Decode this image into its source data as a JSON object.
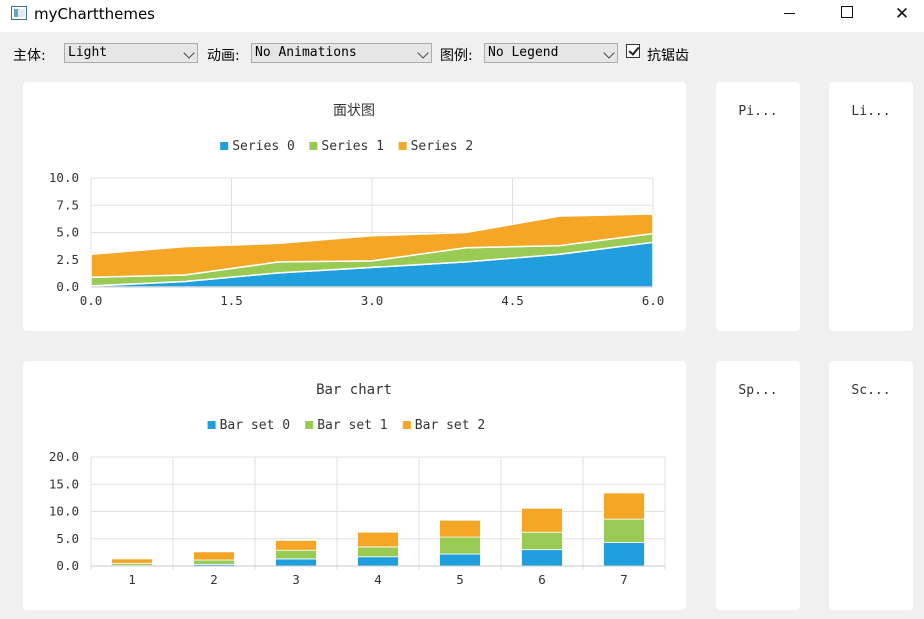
{
  "window": {
    "title": "myChartthemes",
    "minimize": "—",
    "maximize": "☐",
    "close": "✕"
  },
  "toolbar": {
    "theme_label": "主体:",
    "theme_value": "Light",
    "animation_label": "动画:",
    "animation_value": "No Animations",
    "legend_label": "图例:",
    "legend_value": "No Legend",
    "antialias_label": "抗锯齿",
    "antialias_checked": true
  },
  "colors": {
    "series0": "#209fdf",
    "series1": "#99ca53",
    "series2": "#f6a625",
    "grid": "#e0e0e0"
  },
  "chart_data": [
    {
      "type": "area",
      "title": "面状图",
      "legend": [
        "Series 0",
        "Series 1",
        "Series 2"
      ],
      "x": [
        0,
        1,
        2,
        3,
        4,
        5,
        6
      ],
      "stacked": true,
      "series": [
        {
          "name": "Series 0",
          "values": [
            0.1,
            0.5,
            1.3,
            1.8,
            2.3,
            3.0,
            4.1
          ]
        },
        {
          "name": "Series 1",
          "values": [
            0.8,
            0.6,
            1.0,
            0.6,
            1.3,
            0.8,
            0.8
          ]
        },
        {
          "name": "Series 2",
          "values": [
            2.1,
            2.6,
            1.7,
            2.3,
            1.4,
            2.7,
            1.8
          ]
        }
      ],
      "xlim": [
        0,
        6
      ],
      "ylim": [
        0,
        10
      ],
      "xticks": [
        "0.0",
        "1.5",
        "3.0",
        "4.5",
        "6.0"
      ],
      "yticks": [
        "0.0",
        "2.5",
        "5.0",
        "7.5",
        "10.0"
      ],
      "grid": true,
      "legend_position": "top"
    },
    {
      "type": "bar",
      "stacked": true,
      "title": "Bar chart",
      "legend": [
        "Bar set 0",
        "Bar set 1",
        "Bar set 2"
      ],
      "categories": [
        "1",
        "2",
        "3",
        "4",
        "5",
        "6",
        "7"
      ],
      "series": [
        {
          "name": "Bar set 0",
          "values": [
            0.1,
            0.3,
            1.3,
            1.7,
            2.2,
            3.0,
            4.3
          ]
        },
        {
          "name": "Bar set 1",
          "values": [
            0.4,
            0.8,
            1.6,
            1.8,
            3.1,
            3.2,
            4.3
          ]
        },
        {
          "name": "Bar set 2",
          "values": [
            0.8,
            1.5,
            1.8,
            2.7,
            3.1,
            4.4,
            4.8
          ]
        }
      ],
      "ylim": [
        0,
        20
      ],
      "yticks": [
        "0.0",
        "5.0",
        "10.0",
        "15.0",
        "20.0"
      ],
      "grid": true,
      "legend_position": "top"
    }
  ],
  "thumbnails": {
    "pie": "Pi...",
    "line": "Li...",
    "spline": "Sp...",
    "scatter": "Sc..."
  }
}
